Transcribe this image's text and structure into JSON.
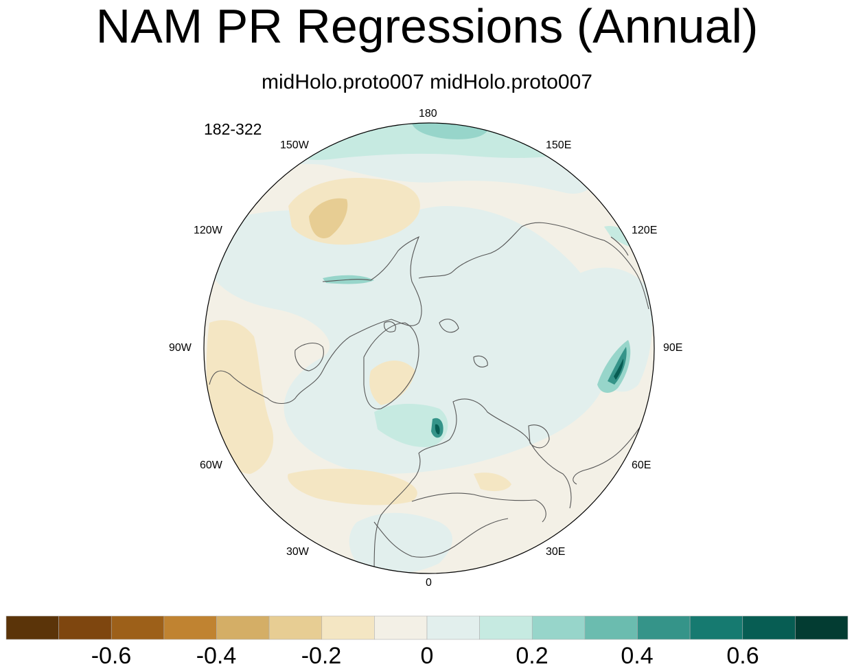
{
  "title": "NAM PR Regressions (Annual)",
  "subtitle": "midHolo.proto007  midHolo.proto007",
  "years_label": "182-322",
  "longitude_labels": {
    "lon_180": "180",
    "lon_150e": "150E",
    "lon_120e": "120E",
    "lon_90e": "90E",
    "lon_60e": "60E",
    "lon_30e": "30E",
    "lon_0": "0",
    "lon_30w": "30W",
    "lon_60w": "60W",
    "lon_90w": "90W",
    "lon_120w": "120W",
    "lon_150w": "150W"
  },
  "projection": "north-polar-stereographic",
  "colorbar": {
    "colors": [
      "#5b3409",
      "#7e460f",
      "#9d6019",
      "#c08331",
      "#d4ae66",
      "#e7cd93",
      "#f4e6c3",
      "#f3f0e6",
      "#e2efed",
      "#c6eae1",
      "#97d5ca",
      "#6bbcaf",
      "#359489",
      "#167a70",
      "#075d53",
      "#033c32"
    ],
    "boundaries": [
      -0.7,
      -0.6,
      -0.5,
      -0.4,
      -0.3,
      -0.2,
      -0.1,
      -0.05,
      0,
      0.05,
      0.1,
      0.2,
      0.3,
      0.4,
      0.5,
      0.6,
      0.7
    ],
    "tick_labels": [
      {
        "key": "t_m06",
        "text": "-0.6"
      },
      {
        "key": "t_m04",
        "text": "-0.4"
      },
      {
        "key": "t_m02",
        "text": "-0.2"
      },
      {
        "key": "t_0",
        "text": "0"
      },
      {
        "key": "t_02",
        "text": "0.2"
      },
      {
        "key": "t_04",
        "text": "0.4"
      },
      {
        "key": "t_06",
        "text": "0.6"
      }
    ]
  }
}
